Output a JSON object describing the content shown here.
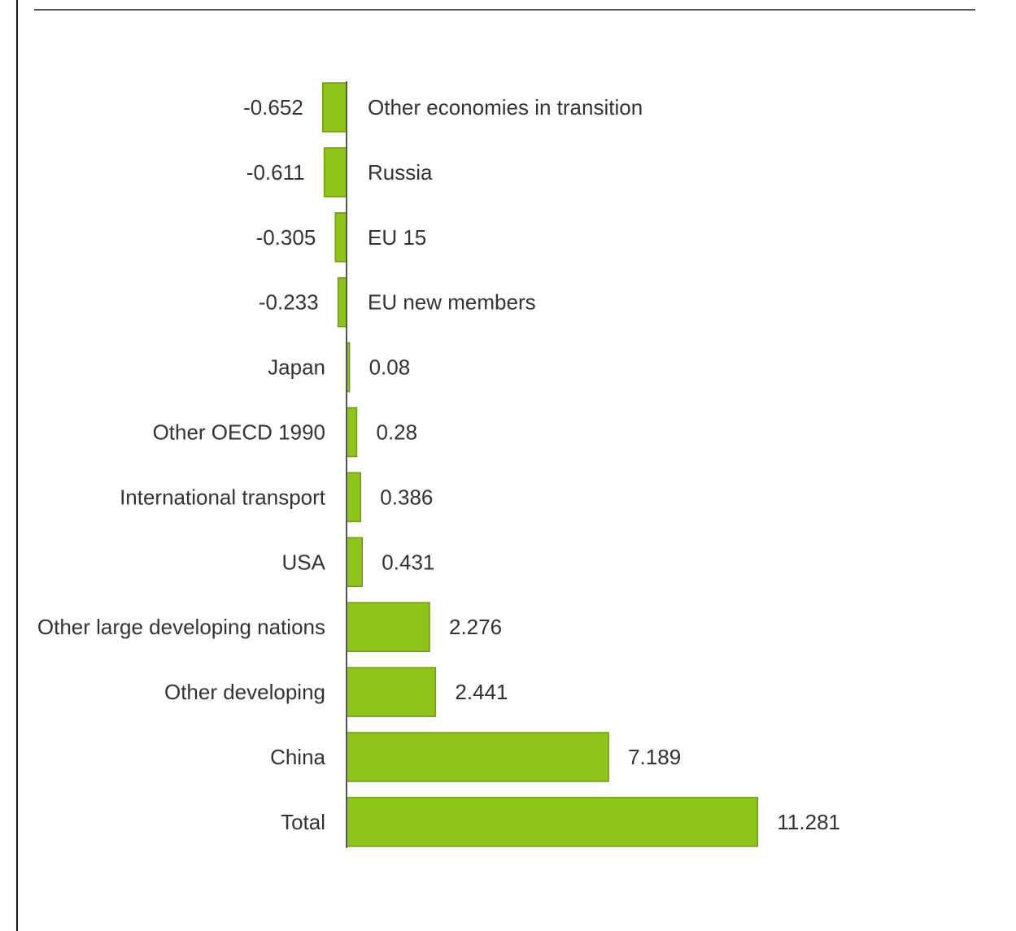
{
  "chart_data": {
    "type": "bar",
    "orientation": "horizontal",
    "categories": [
      "Other economies in transition",
      "Russia",
      "EU 15",
      "EU new members",
      "Japan",
      "Other OECD 1990",
      "International transport",
      "USA",
      "Other large developing nations",
      "Other developing",
      "China",
      "Total"
    ],
    "values": [
      -0.652,
      -0.611,
      -0.305,
      -0.233,
      0.08,
      0.28,
      0.386,
      0.431,
      2.276,
      2.441,
      7.189,
      11.281
    ],
    "value_labels": [
      "-0.652",
      "-0.611",
      "-0.305",
      "-0.233",
      "0.08",
      "0.28",
      "0.386",
      "0.431",
      "2.276",
      "2.441",
      "7.189",
      "11.281"
    ],
    "bar_color": "#8fc41a",
    "bar_edge_color": "#6f9a12",
    "axis_color": "#555555",
    "text_color": "#333333",
    "xlim": [
      -0.7,
      11.3
    ],
    "grid": false,
    "legend": "none",
    "title": "",
    "xlabel": "",
    "ylabel": ""
  }
}
